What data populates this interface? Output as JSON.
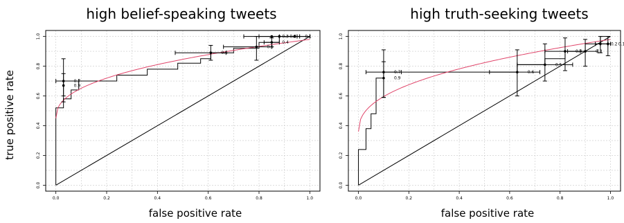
{
  "figure": {
    "ylabel": "true positive rate"
  },
  "chart_data": [
    {
      "type": "line",
      "title": "high belief-speaking tweets",
      "xlabel": "false positive rate",
      "ylabel": "true positive rate",
      "xlim": [
        0,
        1
      ],
      "ylim": [
        0,
        1
      ],
      "xticks": [
        "0.0",
        "0.2",
        "0.4",
        "0.6",
        "0.8",
        "1.0"
      ],
      "yticks": [
        "0.0",
        "0.2",
        "0.4",
        "0.6",
        "0.8",
        "1.0"
      ],
      "grid": true,
      "roc_step": {
        "x": [
          0.0,
          0.0,
          0.03,
          0.03,
          0.06,
          0.06,
          0.09,
          0.09,
          0.24,
          0.24,
          0.36,
          0.36,
          0.48,
          0.48,
          0.57,
          0.57,
          0.61,
          0.61,
          0.7,
          0.7,
          0.8,
          0.8,
          0.88,
          0.88,
          1.0
        ],
        "y": [
          0.0,
          0.52,
          0.52,
          0.58,
          0.58,
          0.64,
          0.64,
          0.7,
          0.7,
          0.74,
          0.74,
          0.78,
          0.78,
          0.82,
          0.82,
          0.85,
          0.85,
          0.89,
          0.89,
          0.92,
          0.92,
          0.96,
          0.96,
          1.0,
          1.0
        ]
      },
      "fitted_curve": {
        "color": "#e0456a",
        "from_x": 0.0,
        "x_end": 1.0,
        "y0": 0.45,
        "y_end": 0.98
      },
      "diagonal": true,
      "points": [
        {
          "label": "0.9",
          "x": 0.03,
          "y": 0.67,
          "xerr": [
            0.03,
            0.03
          ],
          "yerr": [
            0.6,
            0.75
          ]
        },
        {
          "label": "0.7",
          "x": 0.03,
          "y": 0.7,
          "xerr": [
            0.0,
            0.09
          ],
          "yerr": [
            0.56,
            0.85
          ]
        },
        {
          "label": "0.6",
          "x": 0.61,
          "y": 0.89,
          "xerr": [
            0.47,
            0.67
          ],
          "yerr": [
            0.84,
            0.94
          ]
        },
        {
          "label": "0.5",
          "x": 0.79,
          "y": 0.93,
          "xerr": [
            0.66,
            0.85
          ],
          "yerr": [
            0.84,
            1.0
          ]
        },
        {
          "label": "0.4",
          "x": 0.85,
          "y": 0.96,
          "xerr": [
            0.82,
            0.88
          ],
          "yerr": [
            0.93,
            1.0
          ]
        },
        {
          "label": "0.3",
          "x": 0.85,
          "y": 1.0,
          "xerr": [
            0.74,
            0.96
          ],
          "yerr": [
            0.99,
            1.0
          ]
        },
        {
          "label": "0.2",
          "x": 0.88,
          "y": 1.0,
          "xerr": [
            0.8,
            0.95
          ],
          "yerr": [
            1.0,
            1.0
          ]
        },
        {
          "label": "0.1",
          "x": 0.94,
          "y": 1.0,
          "xerr": [
            0.88,
            1.0
          ],
          "yerr": [
            1.0,
            1.0
          ]
        }
      ]
    },
    {
      "type": "line",
      "title": "high truth-seeking tweets",
      "xlabel": "false positive rate",
      "ylabel": "",
      "xlim": [
        0,
        1
      ],
      "ylim": [
        0,
        1
      ],
      "xticks": [
        "0.0",
        "0.2",
        "0.4",
        "0.6",
        "0.8",
        "1.0"
      ],
      "yticks": [
        "0.0",
        "0.2",
        "0.4",
        "0.6",
        "0.8",
        "1.0"
      ],
      "grid": true,
      "roc_step": {
        "x": [
          0.0,
          0.0,
          0.03,
          0.03,
          0.05,
          0.05,
          0.07,
          0.07,
          0.1,
          0.1,
          0.63,
          0.63,
          0.74,
          0.74,
          0.82,
          0.82,
          0.9,
          0.9,
          0.96,
          0.96,
          1.0
        ],
        "y": [
          0.0,
          0.24,
          0.24,
          0.38,
          0.38,
          0.48,
          0.48,
          0.72,
          0.72,
          0.76,
          0.76,
          0.81,
          0.81,
          0.85,
          0.85,
          0.9,
          0.9,
          0.95,
          0.95,
          1.0,
          1.0
        ]
      },
      "fitted_curve": {
        "color": "#e0456a",
        "from_x": 0.0,
        "x_end": 1.0,
        "y0": 0.36,
        "y_end": 0.98
      },
      "diagonal": true,
      "points": [
        {
          "label": "0.9",
          "x": 0.1,
          "y": 0.72,
          "xerr": [
            0.1,
            0.1
          ],
          "yerr": [
            0.59,
            0.83
          ]
        },
        {
          "label": "0.7",
          "x": 0.1,
          "y": 0.76,
          "xerr": [
            0.03,
            0.17
          ],
          "yerr": [
            0.59,
            0.91
          ]
        },
        {
          "label": "0.6",
          "x": 0.63,
          "y": 0.76,
          "xerr": [
            0.52,
            0.72
          ],
          "yerr": [
            0.6,
            0.91
          ]
        },
        {
          "label": "0.5",
          "x": 0.74,
          "y": 0.81,
          "xerr": [
            0.63,
            0.85
          ],
          "yerr": [
            0.7,
            0.95
          ]
        },
        {
          "label": "0.4",
          "x": 0.82,
          "y": 0.9,
          "xerr": [
            0.74,
            0.88
          ],
          "yerr": [
            0.77,
            0.99
          ]
        },
        {
          "label": "0.3",
          "x": 0.9,
          "y": 0.9,
          "xerr": [
            0.83,
            0.95
          ],
          "yerr": [
            0.8,
            0.98
          ]
        },
        {
          "label": "0.2",
          "x": 0.96,
          "y": 0.95,
          "xerr": [
            0.94,
            0.99
          ],
          "yerr": [
            0.89,
            1.0
          ]
        },
        {
          "label": "0.1",
          "x": 0.99,
          "y": 0.95,
          "xerr": [
            0.96,
            1.0
          ],
          "yerr": [
            0.87,
            1.0
          ]
        }
      ]
    }
  ]
}
